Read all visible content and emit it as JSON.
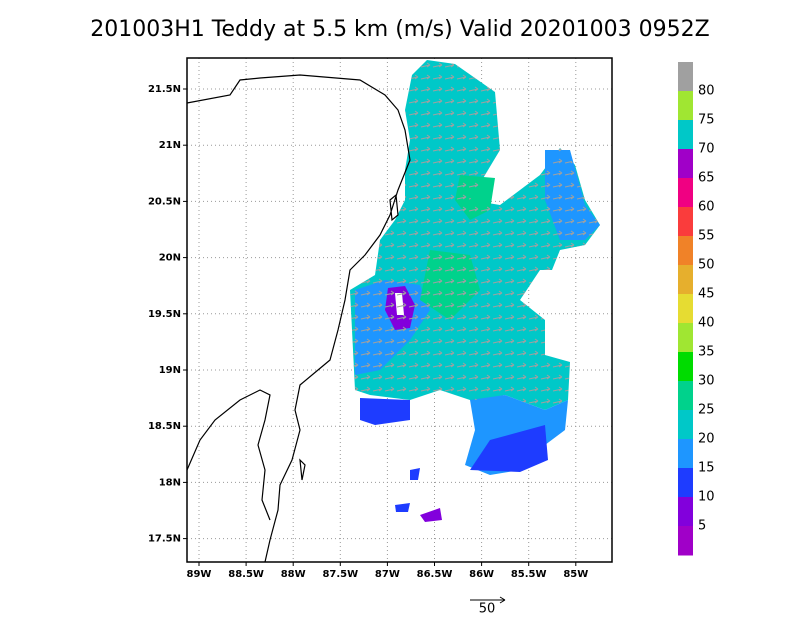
{
  "title": "201003H1 Teddy at 5.5 km (m/s) Valid 20201003 0952Z",
  "map": {
    "lat_labels": [
      "21.5N",
      "21N",
      "20.5N",
      "20N",
      "19.5N",
      "19N",
      "18.5N",
      "18N",
      "17.5N"
    ],
    "lon_labels": [
      "89W",
      "88.5W",
      "88W",
      "87.5W",
      "87W",
      "86.5W",
      "86W",
      "85.5W",
      "85W"
    ]
  },
  "colorbar": {
    "labels": [
      80,
      75,
      70,
      65,
      60,
      55,
      50,
      45,
      40,
      35,
      30,
      25,
      20,
      15,
      10,
      5
    ],
    "colors": [
      "#a0a0a0",
      "#a0e632",
      "#00c8c8",
      "#a000c8",
      "#f00082",
      "#fa3c3c",
      "#f08228",
      "#e6af2d",
      "#e6dc32",
      "#a0e632",
      "#00dc00",
      "#00d28c",
      "#00c8c8",
      "#1e96ff",
      "#1e3cff",
      "#8200dc",
      "#a000c8"
    ]
  },
  "scale_label": "50"
}
